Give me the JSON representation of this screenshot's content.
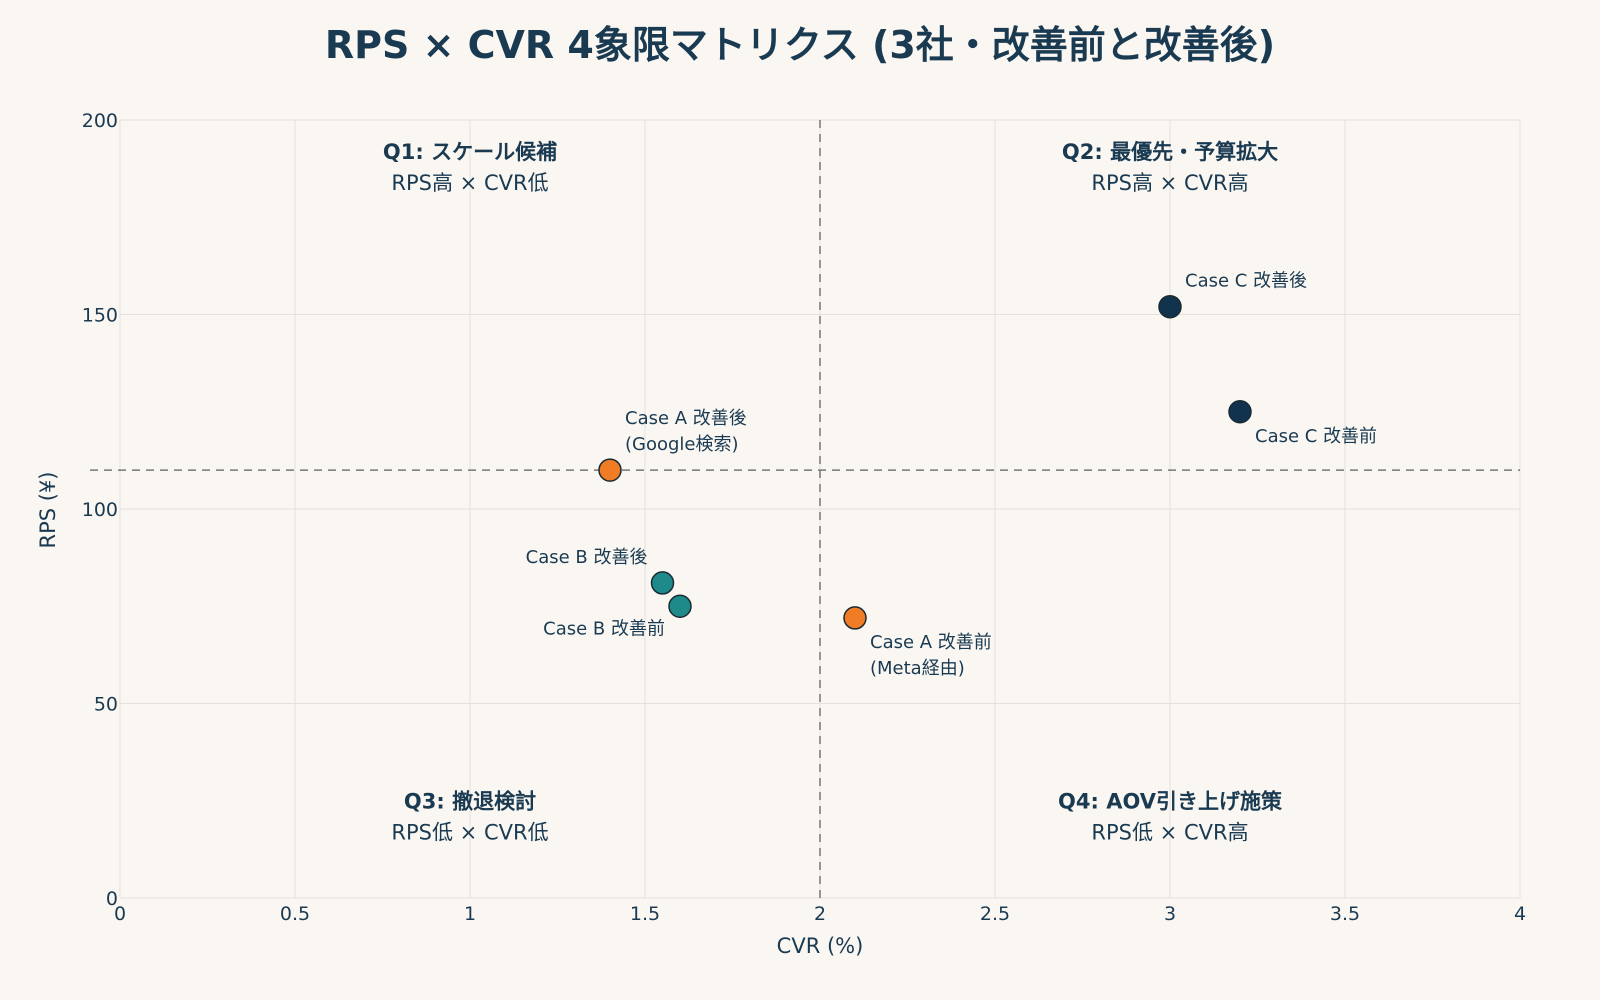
{
  "chart_data": {
    "type": "scatter",
    "title": "RPS × CVR 4象限マトリクス (3社・改善前と改善後)",
    "xlabel": "CVR (%)",
    "ylabel": "RPS (¥)",
    "xlim": [
      0,
      4
    ],
    "ylim": [
      0,
      200
    ],
    "xticks": [
      0,
      0.5,
      1,
      1.5,
      2,
      2.5,
      3,
      3.5,
      4
    ],
    "xtick_labels": [
      "0",
      "0.5",
      "1",
      "1.5",
      "2",
      "2.5",
      "3",
      "3.5",
      "4"
    ],
    "yticks": [
      0,
      50,
      100,
      150,
      200
    ],
    "ytick_labels": [
      "0",
      "50",
      "100",
      "150",
      "200"
    ],
    "grid": true,
    "reference_lines": {
      "x": 2,
      "y": 110
    },
    "colors": {
      "case_a": "#f07c26",
      "case_b": "#1f8a8a",
      "case_c": "#12334d"
    },
    "points": [
      {
        "x": 2.1,
        "y": 72,
        "color": "#f07c26",
        "label_lines": [
          "Case A 改善前",
          "(Meta経由)"
        ],
        "label_pos": "bottom-right"
      },
      {
        "x": 1.4,
        "y": 110,
        "color": "#f07c26",
        "label_lines": [
          "Case A 改善後",
          "(Google検索)"
        ],
        "label_pos": "top-right"
      },
      {
        "x": 1.6,
        "y": 75,
        "color": "#1f8a8a",
        "label_lines": [
          "Case B 改善前"
        ],
        "label_pos": "bottom-left"
      },
      {
        "x": 1.55,
        "y": 81,
        "color": "#1f8a8a",
        "label_lines": [
          "Case B 改善後"
        ],
        "label_pos": "top-left"
      },
      {
        "x": 3.2,
        "y": 125,
        "color": "#12334d",
        "label_lines": [
          "Case C 改善前"
        ],
        "label_pos": "bottom-right"
      },
      {
        "x": 3.0,
        "y": 152,
        "color": "#12334d",
        "label_lines": [
          "Case C 改善後"
        ],
        "label_pos": "top-right"
      }
    ],
    "quadrants": [
      {
        "id": "q1",
        "title": "Q1: スケール候補",
        "subtitle": "RPS高 × CVR低",
        "x": 1.0,
        "y": 190
      },
      {
        "id": "q2",
        "title": "Q2: 最優先・予算拡大",
        "subtitle": "RPS高 × CVR高",
        "x": 3.0,
        "y": 190
      },
      {
        "id": "q3",
        "title": "Q3: 撤退検討",
        "subtitle": "RPS低 × CVR低",
        "x": 1.0,
        "y": 23
      },
      {
        "id": "q4",
        "title": "Q4: AOV引き上げ施策",
        "subtitle": "RPS低 × CVR高",
        "x": 3.0,
        "y": 23
      }
    ]
  }
}
